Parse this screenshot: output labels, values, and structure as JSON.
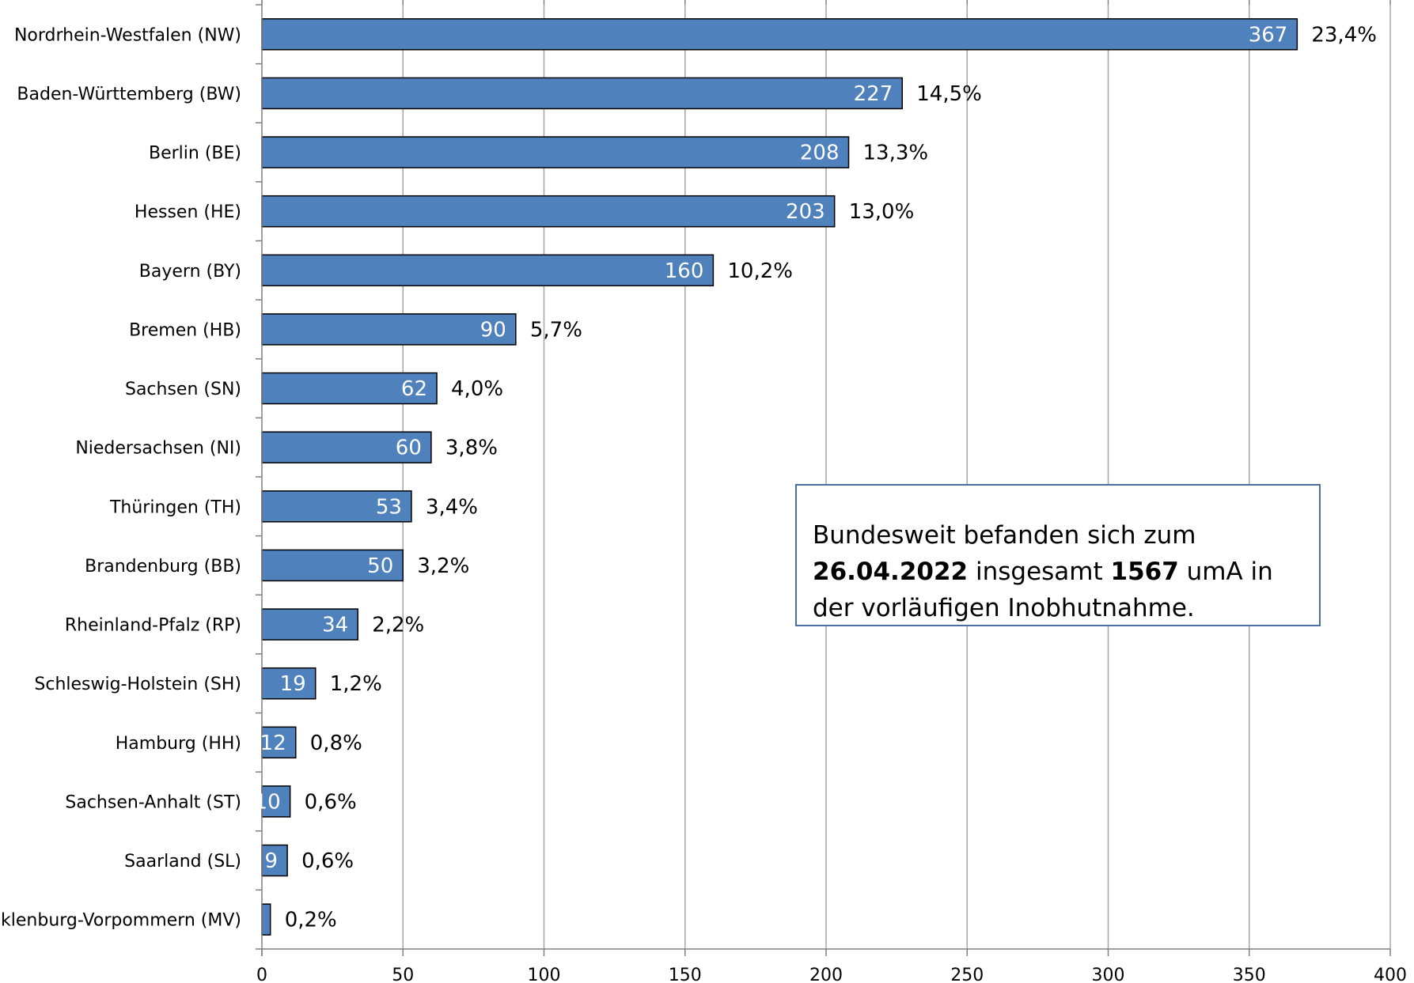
{
  "chart_data": {
    "type": "bar",
    "orientation": "horizontal",
    "categories": [
      "Nordrhein-Westfalen (NW)",
      "Baden-Württemberg (BW)",
      "Berlin (BE)",
      "Hessen (HE)",
      "Bayern (BY)",
      "Bremen (HB)",
      "Sachsen (SN)",
      "Niedersachsen (NI)",
      "Thüringen (TH)",
      "Brandenburg (BB)",
      "Rheinland-Pfalz (RP)",
      "Schleswig-Holstein (SH)",
      "Hamburg (HH)",
      "Sachsen-Anhalt (ST)",
      "Saarland (SL)",
      "Mecklenburg-Vorpommern (MV)"
    ],
    "values": [
      367,
      227,
      208,
      203,
      160,
      90,
      62,
      60,
      53,
      50,
      34,
      19,
      12,
      10,
      9,
      3
    ],
    "percent_labels": [
      "23,4%",
      "14,5%",
      "13,3%",
      "13,0%",
      "10,2%",
      "5,7%",
      "4,0%",
      "3,8%",
      "3,4%",
      "3,2%",
      "2,2%",
      "1,2%",
      "0,8%",
      "0,6%",
      "0,6%",
      "0,2%"
    ],
    "xlim": [
      0,
      400
    ],
    "xticks": [
      0,
      50,
      100,
      150,
      200,
      250,
      300,
      350,
      400
    ],
    "grid": true,
    "bar_color": "#4f81bd",
    "annotation": {
      "t1": "Bundesweit befanden sich zum ",
      "b1": "26.04.2022",
      "t2": " insgesamt ",
      "b2": "1567",
      "t3": " umA in der vorläufigen Inobhutnahme."
    }
  }
}
